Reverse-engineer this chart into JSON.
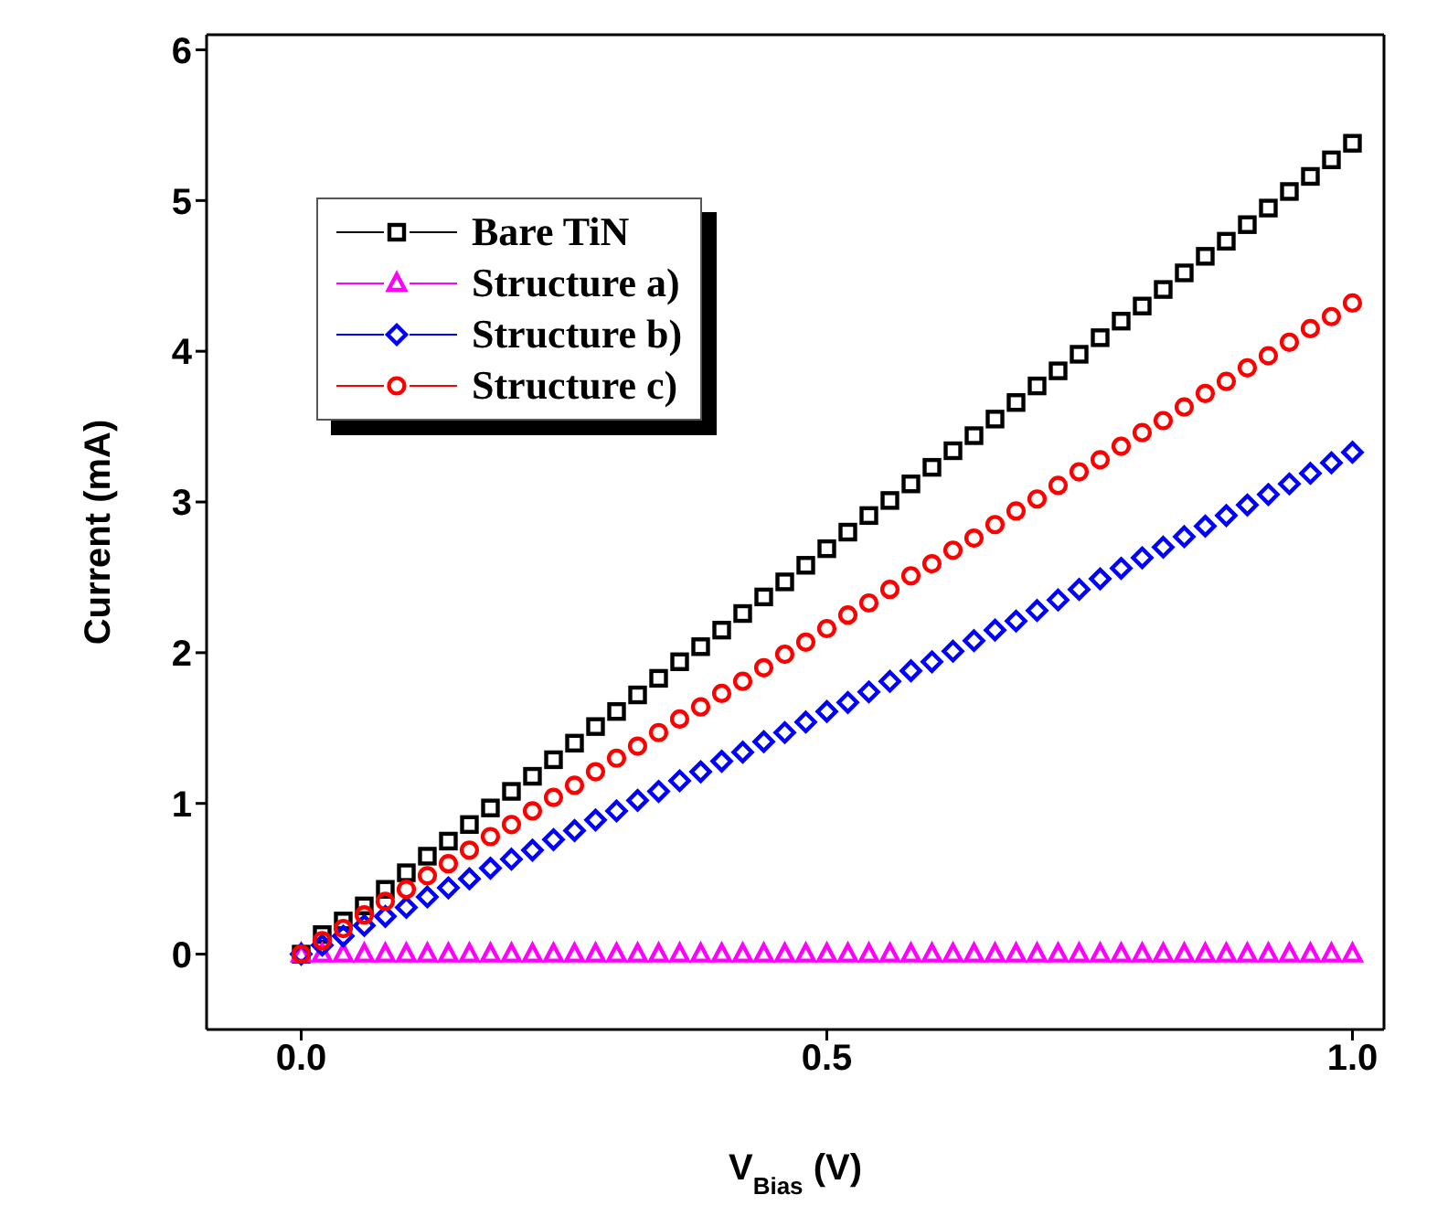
{
  "chart_data": {
    "type": "scatter",
    "xlabel": "V$_{Bias}$ (V)",
    "ylabel": "Current (mA)",
    "x": [
      0,
      0.02,
      0.04,
      0.06,
      0.08,
      0.1,
      0.12,
      0.14,
      0.16,
      0.18,
      0.2,
      0.22,
      0.24,
      0.26,
      0.28,
      0.3,
      0.32,
      0.34,
      0.36,
      0.38,
      0.4,
      0.42,
      0.44,
      0.46,
      0.48,
      0.5,
      0.52,
      0.54,
      0.56,
      0.58,
      0.6,
      0.62,
      0.64,
      0.66,
      0.68,
      0.7,
      0.72,
      0.74,
      0.76,
      0.78,
      0.8,
      0.82,
      0.84,
      0.86,
      0.88,
      0.9,
      0.92,
      0.94,
      0.96,
      0.98,
      1
    ],
    "series": [
      {
        "name": "Bare TiN",
        "color": "#000000",
        "marker": "square",
        "values": [
          0,
          0.13,
          0.22,
          0.32,
          0.43,
          0.54,
          0.65,
          0.75,
          0.86,
          0.97,
          1.08,
          1.18,
          1.29,
          1.4,
          1.51,
          1.61,
          1.72,
          1.83,
          1.94,
          2.04,
          2.15,
          2.26,
          2.37,
          2.47,
          2.58,
          2.69,
          2.8,
          2.91,
          3.01,
          3.12,
          3.23,
          3.34,
          3.44,
          3.55,
          3.66,
          3.77,
          3.87,
          3.98,
          4.09,
          4.2,
          4.3,
          4.41,
          4.52,
          4.63,
          4.73,
          4.84,
          4.95,
          5.06,
          5.16,
          5.27,
          5.38
        ]
      },
      {
        "name": "Structure a)",
        "color": "#ff00ff",
        "marker": "triangle",
        "values": [
          0,
          0,
          0,
          0,
          0,
          0,
          0,
          0,
          0,
          0,
          0,
          0,
          0,
          0,
          0,
          0,
          0,
          0,
          0,
          0,
          0,
          0,
          0,
          0,
          0,
          0,
          0,
          0,
          0,
          0,
          0,
          0,
          0,
          0,
          0,
          0,
          0,
          0,
          0,
          0,
          0,
          0,
          0,
          0,
          0,
          0,
          0,
          0,
          0,
          0,
          0
        ]
      },
      {
        "name": "Structure b)",
        "color": "#0000ff",
        "marker": "diamond",
        "values": [
          0,
          0.06,
          0.12,
          0.19,
          0.25,
          0.31,
          0.38,
          0.44,
          0.5,
          0.57,
          0.63,
          0.69,
          0.76,
          0.82,
          0.89,
          0.95,
          1.02,
          1.08,
          1.15,
          1.21,
          1.28,
          1.34,
          1.41,
          1.47,
          1.54,
          1.61,
          1.67,
          1.74,
          1.81,
          1.88,
          1.94,
          2.01,
          2.08,
          2.15,
          2.21,
          2.28,
          2.35,
          2.42,
          2.49,
          2.56,
          2.63,
          2.7,
          2.77,
          2.84,
          2.91,
          2.98,
          3.05,
          3.12,
          3.19,
          3.26,
          3.33
        ]
      },
      {
        "name": "Structure c)",
        "color": "#ff0000",
        "marker": "circle",
        "values": [
          0,
          0.09,
          0.17,
          0.26,
          0.35,
          0.43,
          0.52,
          0.6,
          0.69,
          0.78,
          0.86,
          0.95,
          1.04,
          1.12,
          1.21,
          1.3,
          1.38,
          1.47,
          1.56,
          1.64,
          1.73,
          1.81,
          1.9,
          1.99,
          2.07,
          2.16,
          2.25,
          2.33,
          2.42,
          2.51,
          2.59,
          2.68,
          2.76,
          2.85,
          2.94,
          3.02,
          3.11,
          3.2,
          3.28,
          3.37,
          3.46,
          3.54,
          3.63,
          3.72,
          3.8,
          3.89,
          3.97,
          4.06,
          4.15,
          4.23,
          4.32
        ]
      }
    ],
    "xlim": [
      -0.09,
      1.03
    ],
    "xticks": [
      {
        "value": 0,
        "label": "0.0"
      },
      {
        "value": 0.5,
        "label": "0.5"
      },
      {
        "value": 1,
        "label": "1.0"
      }
    ],
    "ylim": [
      -0.5,
      6.1
    ],
    "yticks": [
      0,
      1,
      2,
      3,
      4,
      5,
      6
    ],
    "legend": "top left"
  }
}
